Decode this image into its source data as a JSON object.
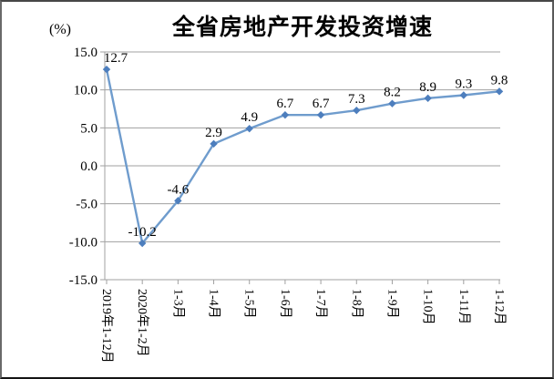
{
  "chart": {
    "colors": {
      "line": "#6f9ccd",
      "marker": "#4d7ebd",
      "grid": "#a0a0a0",
      "axis": "#a0a0a0",
      "text": "#000000",
      "frame": "#4c4c4c"
    }
  },
  "chart_data": {
    "type": "line",
    "title": "全省房地产开发投资增速",
    "ylabel": "(%)",
    "xlabel": "",
    "categories": [
      "2019年1-12月",
      "2020年1-2月",
      "1-3月",
      "1-4月",
      "1-5月",
      "1-6月",
      "1-7月",
      "1-8月",
      "1-9月",
      "1-10月",
      "1-11月",
      "1-12月"
    ],
    "values": [
      12.7,
      -10.2,
      -4.6,
      2.9,
      4.9,
      6.7,
      6.7,
      7.3,
      8.2,
      8.9,
      9.3,
      9.8
    ],
    "data_labels": [
      "12.7",
      "-10.2",
      "-4.6",
      "2.9",
      "4.9",
      "6.7",
      "6.7",
      "7.3",
      "8.2",
      "8.9",
      "9.3",
      "9.8"
    ],
    "y_ticks": [
      "15.0",
      "10.0",
      "5.0",
      "0.0",
      "-5.0",
      "-10.0",
      "-15.0"
    ],
    "ylim": [
      -15,
      15
    ],
    "grid": "horizontal",
    "legend": "none",
    "marker": "diamond",
    "series_name": "全省房地产开发投资增速"
  }
}
